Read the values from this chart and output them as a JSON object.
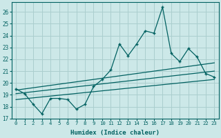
{
  "xlabel": "Humidex (Indice chaleur)",
  "xlim": [
    -0.5,
    23.5
  ],
  "ylim": [
    17,
    26.8
  ],
  "yticks": [
    17,
    18,
    19,
    20,
    21,
    22,
    23,
    24,
    25,
    26
  ],
  "xticks": [
    0,
    1,
    2,
    3,
    4,
    5,
    6,
    7,
    8,
    9,
    10,
    11,
    12,
    13,
    14,
    15,
    16,
    17,
    18,
    19,
    20,
    21,
    22,
    23
  ],
  "bg_color": "#cce8e8",
  "line_color": "#006060",
  "grid_color": "#aacece",
  "main_x": [
    0,
    1,
    2,
    3,
    4,
    5,
    6,
    7,
    8,
    9,
    10,
    11,
    12,
    13,
    14,
    15,
    16,
    17,
    18,
    19,
    20,
    21,
    22,
    23
  ],
  "main_y": [
    19.5,
    19.1,
    18.2,
    17.4,
    18.7,
    18.7,
    18.6,
    17.8,
    18.2,
    19.7,
    20.3,
    21.1,
    23.3,
    22.3,
    23.3,
    24.4,
    24.2,
    26.4,
    22.5,
    21.8,
    22.9,
    22.2,
    20.8,
    20.5
  ],
  "trend1_x": [
    0,
    23
  ],
  "trend1_y": [
    19.4,
    21.7
  ],
  "trend2_x": [
    0,
    23
  ],
  "trend2_y": [
    19.1,
    21.0
  ],
  "trend3_x": [
    0,
    23
  ],
  "trend3_y": [
    18.6,
    20.3
  ]
}
